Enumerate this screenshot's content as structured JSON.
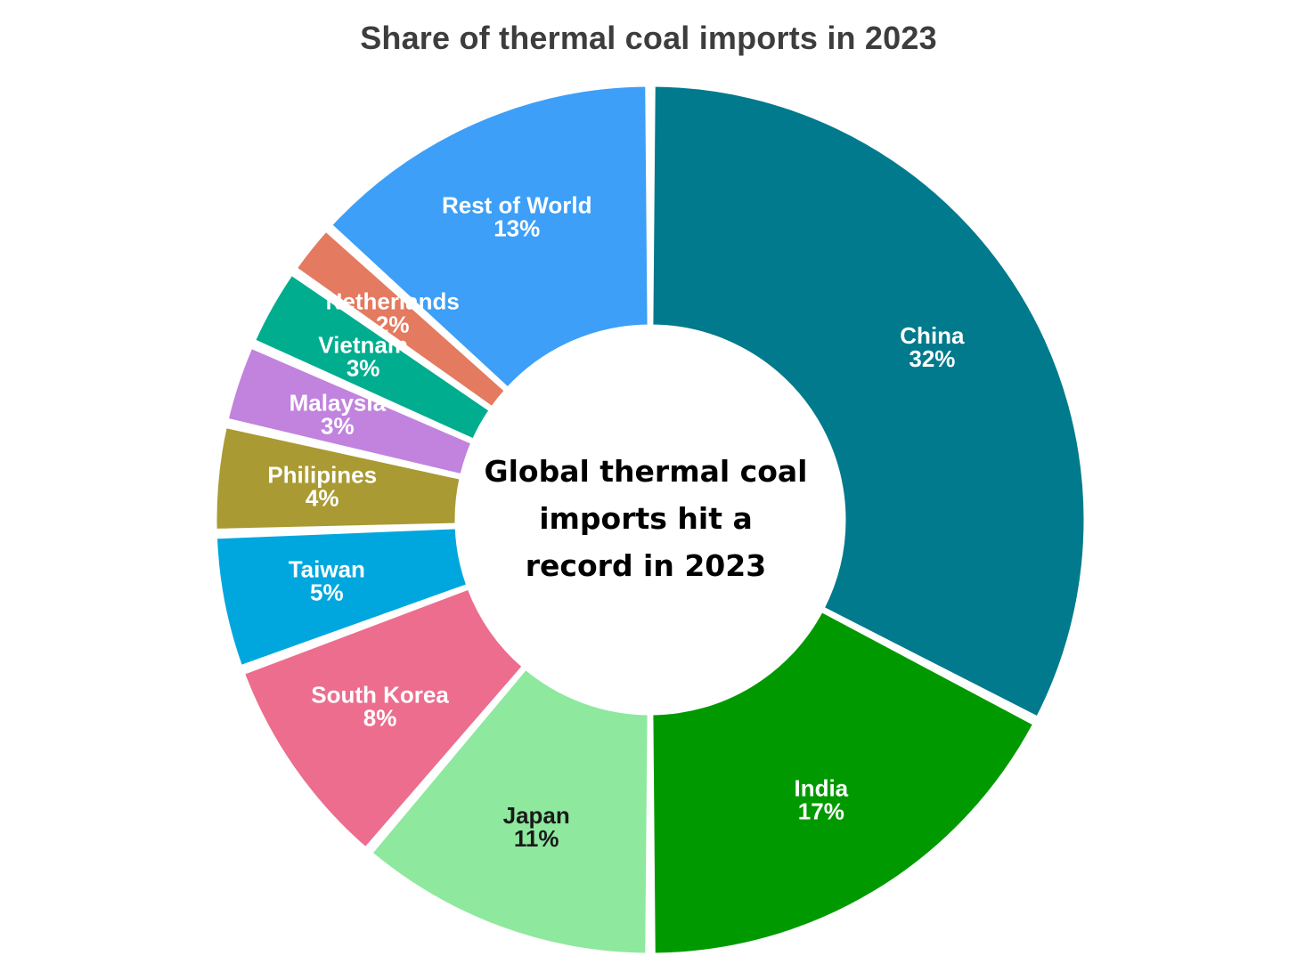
{
  "chart_data": {
    "type": "pie",
    "title": "Share of thermal coal imports in 2023",
    "center_text": [
      "Global thermal coal",
      "imports hit a",
      "record in 2023"
    ],
    "unit": "%",
    "slices": [
      {
        "label": "China",
        "value": 32,
        "value_label": "32%",
        "color": "#007a8c",
        "text_color": "#ffffff"
      },
      {
        "label": "India",
        "value": 17,
        "value_label": "17%",
        "color": "#009a00",
        "text_color": "#ffffff"
      },
      {
        "label": "Japan",
        "value": 11,
        "value_label": "11%",
        "color": "#8ee89e",
        "text_color": "#1a1a1a"
      },
      {
        "label": "South Korea",
        "value": 8,
        "value_label": "8%",
        "color": "#ec6d8e",
        "text_color": "#ffffff"
      },
      {
        "label": "Taiwan",
        "value": 5,
        "value_label": "5%",
        "color": "#00a7de",
        "text_color": "#ffffff"
      },
      {
        "label": "Philipines",
        "value": 4,
        "value_label": "4%",
        "color": "#a99a33",
        "text_color": "#ffffff"
      },
      {
        "label": "Malaysia",
        "value": 3,
        "value_label": "3%",
        "color": "#c183dd",
        "text_color": "#ffffff"
      },
      {
        "label": "Vietnam",
        "value": 3,
        "value_label": "3%",
        "color": "#00ad8e",
        "text_color": "#ffffff"
      },
      {
        "label": "Netherlands",
        "value": 2,
        "value_label": "2%",
        "color": "#e47a5f",
        "text_color": "#ffffff"
      },
      {
        "label": "Rest of World",
        "value": 13,
        "value_label": "13%",
        "color": "#3d9ff7",
        "text_color": "#ffffff"
      }
    ]
  }
}
